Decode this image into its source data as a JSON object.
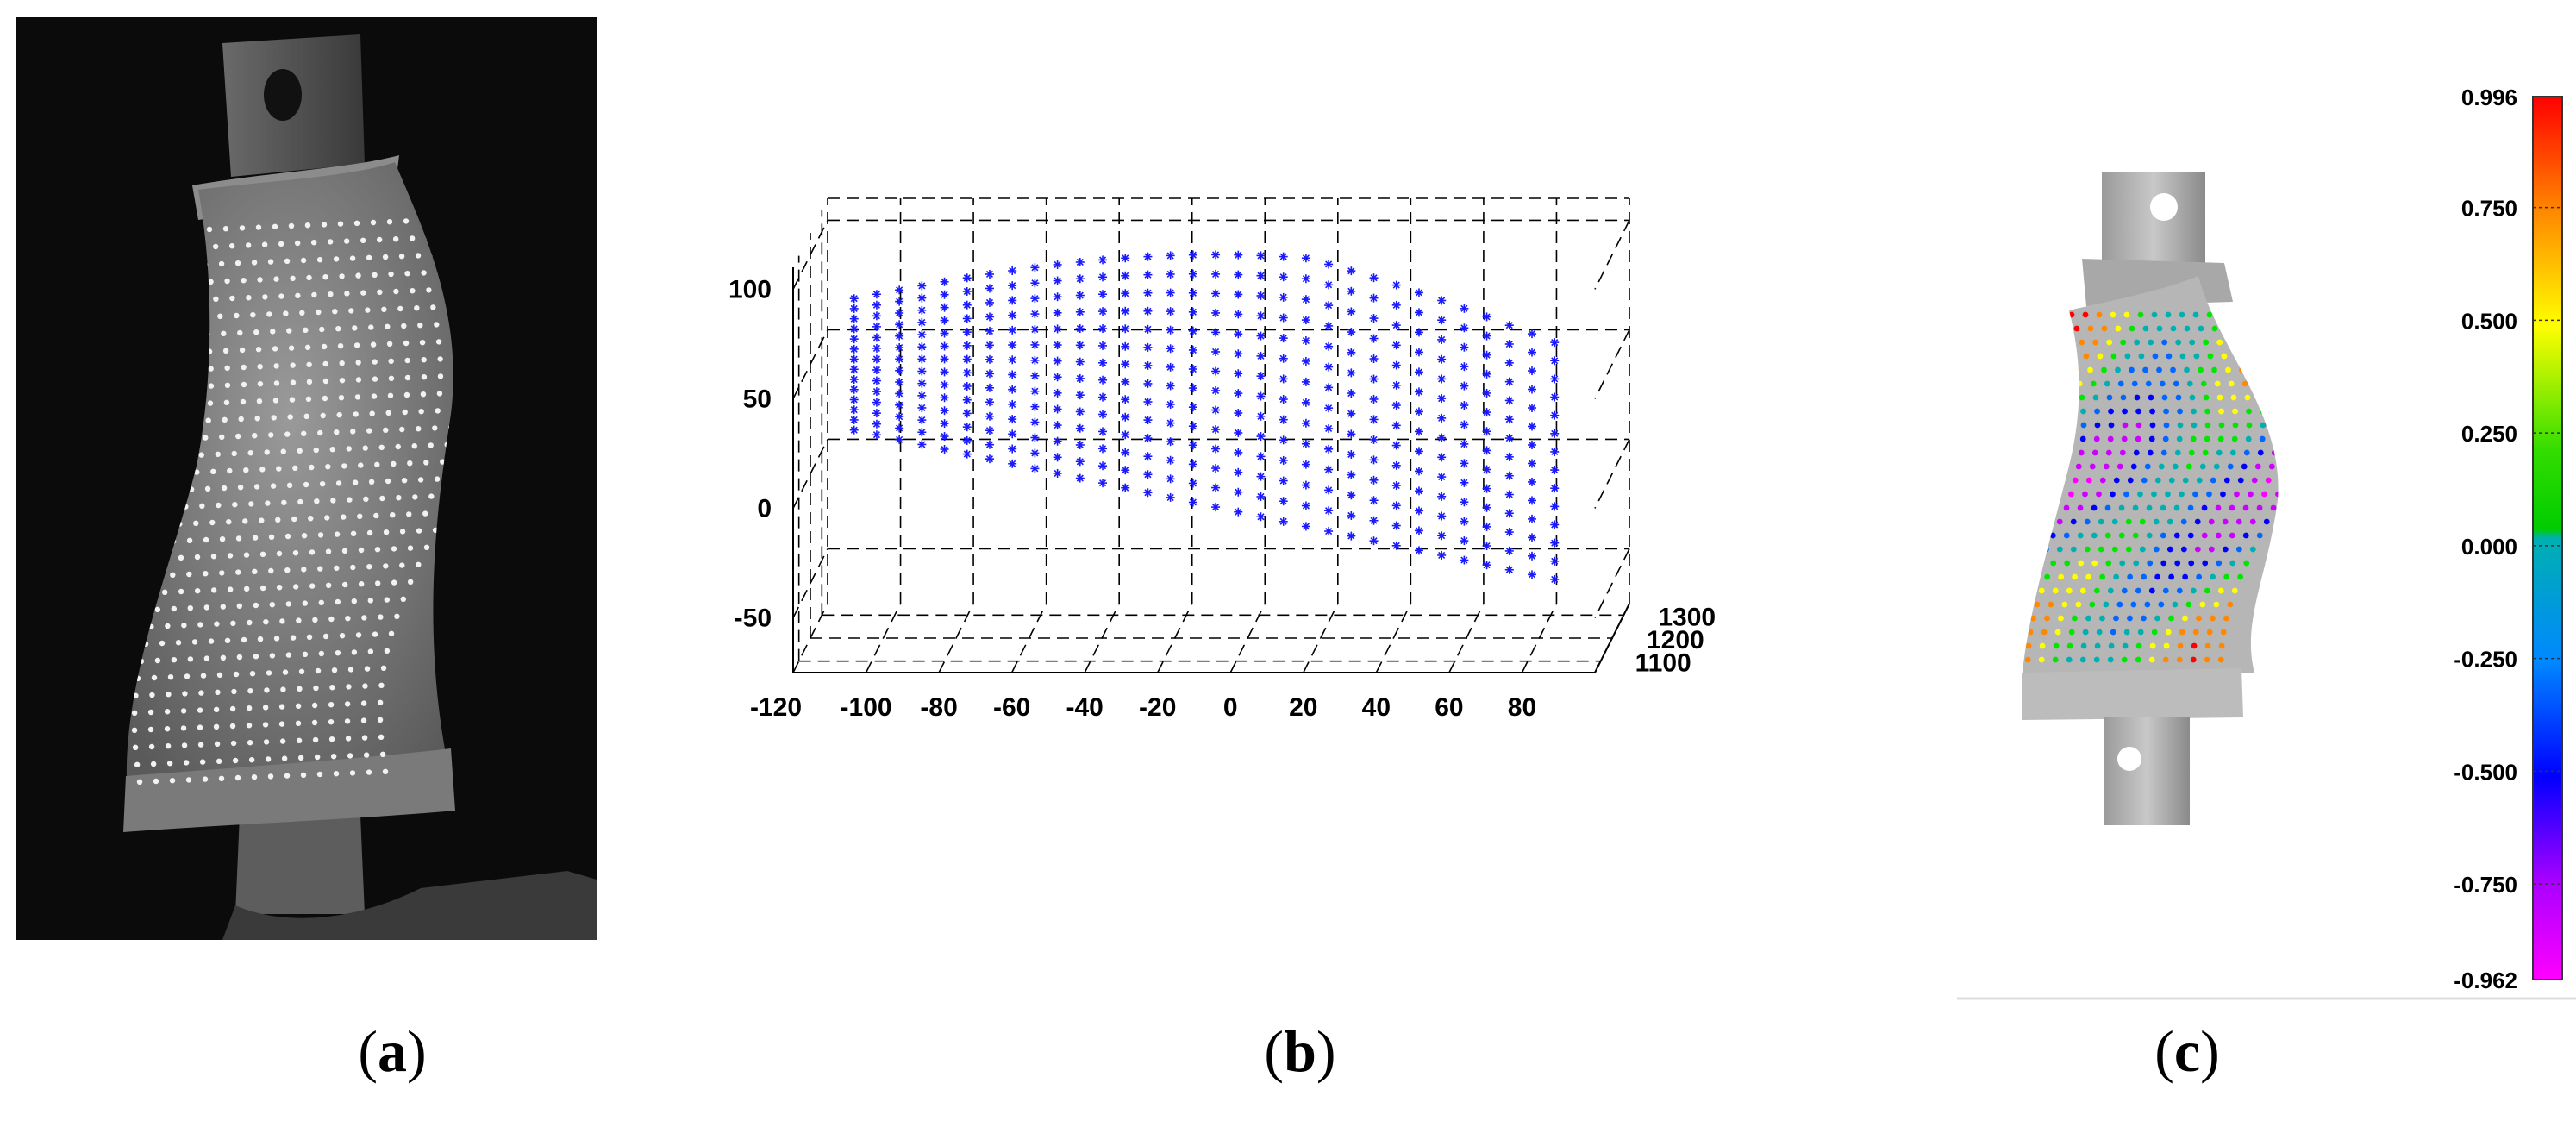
{
  "figure": {
    "panel_a": {
      "caption_letter": "a",
      "image_description_icon": "photo-blade-specimen-with-dot-pattern"
    },
    "panel_b": {
      "caption_letter": "b",
      "chart_data": {
        "type": "scatter",
        "projection": "3d",
        "marker": "asterisk",
        "marker_color": "#1a1aff",
        "grid": true,
        "grid_style": "dashed",
        "x_ticks": [
          "-120",
          "-100",
          "-80",
          "-60",
          "-40",
          "-20",
          "0",
          "20",
          "40",
          "60",
          "80"
        ],
        "y_ticks": [
          "1100",
          "1200",
          "1300"
        ],
        "z_ticks": [
          "100",
          "50",
          "0",
          "-50"
        ],
        "xlim": [
          -120,
          100
        ],
        "ylim": [
          1050,
          1350
        ],
        "zlim": [
          -75,
          110
        ],
        "point_grid": {
          "columns": 32,
          "rows": 14
        }
      }
    },
    "panel_c": {
      "caption_letter": "c",
      "colorbar": {
        "tick_labels": [
          "0.996",
          "0.750",
          "0.500",
          "0.250",
          "0.000",
          "-0.250",
          "-0.500",
          "-0.750",
          "-0.962"
        ],
        "max": 0.996,
        "min": -0.962,
        "colors": [
          "#ff0000",
          "#ff8800",
          "#ffff00",
          "#00e600",
          "#00b0b0",
          "#0066ff",
          "#0000ff",
          "#cc00ff",
          "#ff00ff"
        ]
      },
      "image_description_icon": "3d-model-deviation-map"
    }
  }
}
